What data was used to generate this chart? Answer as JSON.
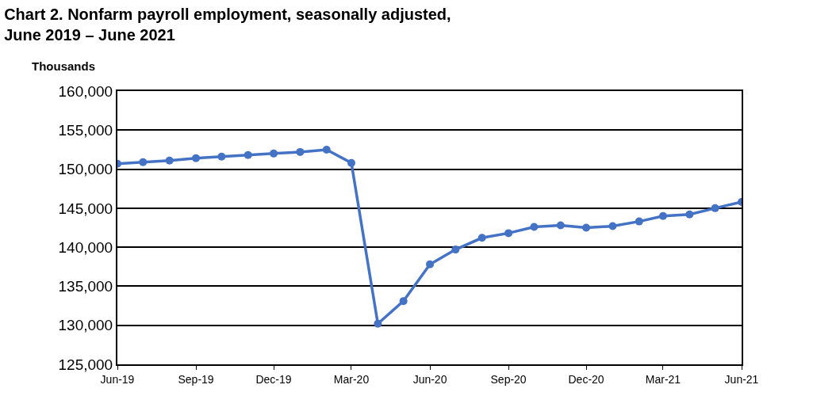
{
  "chart_data": {
    "type": "line",
    "title": "Chart 2. Nonfarm payroll employment, seasonally adjusted,\nJune 2019 – June 2021",
    "ylabel": "Thousands",
    "x": [
      "2019-06",
      "2019-07",
      "2019-08",
      "2019-09",
      "2019-10",
      "2019-11",
      "2019-12",
      "2020-01",
      "2020-02",
      "2020-03",
      "2020-04",
      "2020-05",
      "2020-06",
      "2020-07",
      "2020-08",
      "2020-09",
      "2020-10",
      "2020-11",
      "2020-12",
      "2021-01",
      "2021-02",
      "2021-03",
      "2021-04",
      "2021-05",
      "2021-06"
    ],
    "series": [
      {
        "color": "#4472c4",
        "values": [
          150700,
          150900,
          151100,
          151400,
          151600,
          151800,
          152000,
          152200,
          152500,
          150800,
          130200,
          133100,
          137800,
          139700,
          141200,
          141800,
          142600,
          142800,
          142500,
          142700,
          143300,
          144000,
          144200,
          145000,
          145800
        ]
      }
    ],
    "xlim": [
      "2019-06",
      "2021-06"
    ],
    "xticks": [
      {
        "value": "2019-06",
        "label": "Jun-19"
      },
      {
        "value": "2019-09",
        "label": "Sep-19"
      },
      {
        "value": "2019-12",
        "label": "Dec-19"
      },
      {
        "value": "2020-03",
        "label": "Mar-20"
      },
      {
        "value": "2020-06",
        "label": "Jun-20"
      },
      {
        "value": "2020-09",
        "label": "Sep-20"
      },
      {
        "value": "2020-12",
        "label": "Dec-20"
      },
      {
        "value": "2021-03",
        "label": "Mar-21"
      },
      {
        "value": "2021-06",
        "label": "Jun-21"
      }
    ],
    "ylim": [
      125000,
      160000
    ],
    "yticks": [
      {
        "value": 125000,
        "label": "125,000"
      },
      {
        "value": 130000,
        "label": "130,000"
      },
      {
        "value": 135000,
        "label": "135,000"
      },
      {
        "value": 140000,
        "label": "140,000"
      },
      {
        "value": 145000,
        "label": "145,000"
      },
      {
        "value": 150000,
        "label": "150,000"
      },
      {
        "value": 155000,
        "label": "155,000"
      },
      {
        "value": 160000,
        "label": "160,000"
      }
    ],
    "grid": "y",
    "marker": "circle",
    "line_style": "solid"
  }
}
